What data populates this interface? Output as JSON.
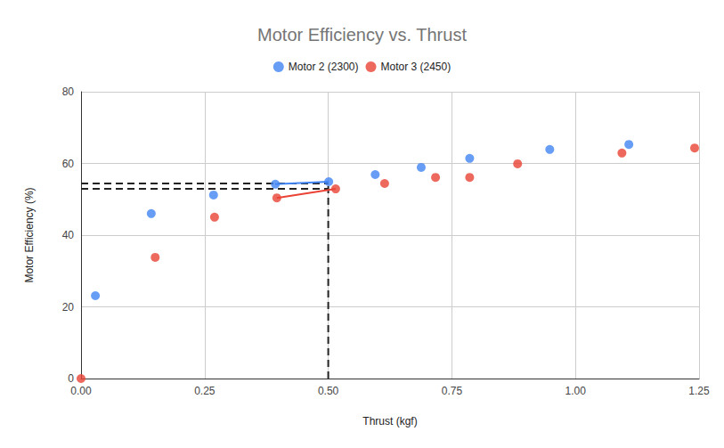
{
  "chart_data": {
    "type": "scatter",
    "title": "Motor Efficiency vs. Thrust",
    "x_label": "Thrust (kgf)",
    "y_label": "Motor Efficiency (%)",
    "xlim": [
      0,
      1.25
    ],
    "xticks": [
      {
        "value": 0,
        "label": "0.00"
      },
      {
        "value": 0.25,
        "label": "0.25"
      },
      {
        "value": 0.5,
        "label": "0.50"
      },
      {
        "value": 0.75,
        "label": "0.75"
      },
      {
        "value": 1,
        "label": "1.00"
      },
      {
        "value": 1.25,
        "label": "1.25"
      }
    ],
    "ylim": [
      0,
      80
    ],
    "yticks": [
      0,
      20,
      40,
      60,
      80
    ],
    "grid": true,
    "legend": "top",
    "series": [
      {
        "name": "Motor 2 (2300)",
        "color": "#4285f4",
        "marker": "circle",
        "x": [
          0.029,
          0.142,
          0.268,
          0.393,
          0.501,
          0.595,
          0.688,
          0.786,
          0.948,
          1.108
        ],
        "values": [
          23.1,
          46.0,
          51.2,
          54.2,
          54.9,
          56.9,
          58.9,
          61.4,
          63.9,
          65.3
        ],
        "segment": [
          [
            0.393,
            54.2
          ],
          [
            0.501,
            54.9
          ]
        ]
      },
      {
        "name": "Motor 3 (2450)",
        "color": "#ea4335",
        "marker": "circle",
        "x": [
          0,
          0.15,
          0.27,
          0.396,
          0.515,
          0.614,
          0.717,
          0.786,
          0.883,
          1.094,
          1.241
        ],
        "values": [
          0,
          33.8,
          45.0,
          50.4,
          52.9,
          54.4,
          56.1,
          56.1,
          59.9,
          62.9,
          64.3
        ],
        "segment": [
          [
            0.396,
            50.4
          ],
          [
            0.515,
            52.9
          ]
        ]
      }
    ],
    "guides": {
      "x": 0.5,
      "y": [
        54.4,
        52.9
      ]
    }
  }
}
